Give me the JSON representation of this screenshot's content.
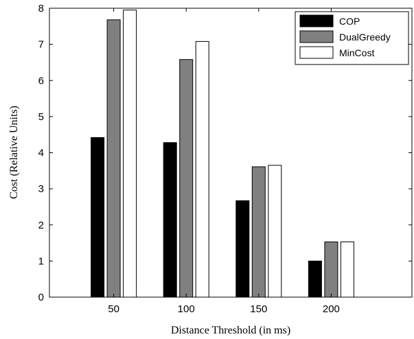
{
  "chart_data": {
    "type": "bar",
    "title": "",
    "xlabel": "Distance Threshold (in ms)",
    "ylabel": "Cost (Relative Units)",
    "categories": [
      "50",
      "100",
      "150",
      "200"
    ],
    "ylim": [
      0,
      8
    ],
    "yticks": [
      "0",
      "1",
      "2",
      "3",
      "4",
      "5",
      "6",
      "7",
      "8"
    ],
    "series": [
      {
        "name": "COP",
        "color": "#000000",
        "values": [
          4.42,
          4.28,
          2.67,
          1.0
        ]
      },
      {
        "name": "DualGreedy",
        "color": "#808080",
        "values": [
          7.68,
          6.58,
          3.61,
          1.53
        ]
      },
      {
        "name": "MinCost",
        "color": "#ffffff",
        "values": [
          7.95,
          7.08,
          3.65,
          1.53
        ]
      }
    ],
    "grid": false,
    "legend_position": "top-right"
  }
}
